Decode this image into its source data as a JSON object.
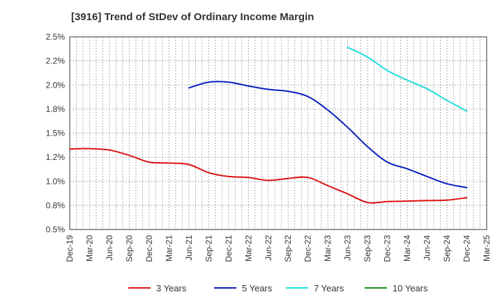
{
  "chart_data": {
    "type": "line",
    "title": "[3916]  Trend of StDev of Ordinary Income Margin",
    "x_categories": [
      "Dec-19",
      "Mar-20",
      "Jun-20",
      "Sep-20",
      "Dec-20",
      "Mar-21",
      "Jun-21",
      "Sep-21",
      "Dec-21",
      "Mar-22",
      "Jun-22",
      "Sep-22",
      "Dec-22",
      "Mar-23",
      "Jun-23",
      "Sep-23",
      "Dec-23",
      "Mar-24",
      "Jun-24",
      "Sep-24",
      "Dec-24",
      "Mar-25"
    ],
    "y_ticks": [
      "0.5%",
      "0.8%",
      "1.0%",
      "1.2%",
      "1.5%",
      "1.8%",
      "2.0%",
      "2.2%",
      "2.5%"
    ],
    "ylim": [
      0.5,
      2.5
    ],
    "grid": true,
    "legend_position": "bottom",
    "series": [
      {
        "name": "3 Years",
        "color": "#dd1111",
        "points": [
          {
            "x": "Dec-19",
            "y": 1.335
          },
          {
            "x": "Mar-20",
            "y": 1.34
          },
          {
            "x": "Jun-20",
            "y": 1.325
          },
          {
            "x": "Sep-20",
            "y": 1.27
          },
          {
            "x": "Dec-20",
            "y": 1.2
          },
          {
            "x": "Mar-21",
            "y": 1.19
          },
          {
            "x": "Jun-21",
            "y": 1.175
          },
          {
            "x": "Sep-21",
            "y": 1.09
          },
          {
            "x": "Dec-21",
            "y": 1.05
          },
          {
            "x": "Mar-22",
            "y": 1.04
          },
          {
            "x": "Jun-22",
            "y": 1.01
          },
          {
            "x": "Sep-22",
            "y": 1.03
          },
          {
            "x": "Dec-22",
            "y": 1.04
          },
          {
            "x": "Mar-23",
            "y": 0.955
          },
          {
            "x": "Jun-23",
            "y": 0.87
          },
          {
            "x": "Sep-23",
            "y": 0.78
          },
          {
            "x": "Dec-23",
            "y": 0.79
          },
          {
            "x": "Mar-24",
            "y": 0.795
          },
          {
            "x": "Jun-24",
            "y": 0.8
          },
          {
            "x": "Sep-24",
            "y": 0.805
          },
          {
            "x": "Dec-24",
            "y": 0.83
          }
        ]
      },
      {
        "name": "5 Years",
        "color": "#0a1ebe",
        "points": [
          {
            "x": "Jun-21",
            "y": 1.97
          },
          {
            "x": "Sep-21",
            "y": 2.03
          },
          {
            "x": "Dec-21",
            "y": 2.03
          },
          {
            "x": "Mar-22",
            "y": 1.99
          },
          {
            "x": "Jun-22",
            "y": 1.955
          },
          {
            "x": "Sep-22",
            "y": 1.935
          },
          {
            "x": "Dec-22",
            "y": 1.88
          },
          {
            "x": "Mar-23",
            "y": 1.74
          },
          {
            "x": "Jun-23",
            "y": 1.56
          },
          {
            "x": "Sep-23",
            "y": 1.36
          },
          {
            "x": "Dec-23",
            "y": 1.2
          },
          {
            "x": "Mar-24",
            "y": 1.13
          },
          {
            "x": "Jun-24",
            "y": 1.05
          },
          {
            "x": "Sep-24",
            "y": 0.975
          },
          {
            "x": "Dec-24",
            "y": 0.935
          }
        ]
      },
      {
        "name": "7 Years",
        "color": "#22dddd",
        "points": [
          {
            "x": "Jun-23",
            "y": 2.39
          },
          {
            "x": "Sep-23",
            "y": 2.29
          },
          {
            "x": "Dec-23",
            "y": 2.15
          },
          {
            "x": "Mar-24",
            "y": 2.05
          },
          {
            "x": "Jun-24",
            "y": 1.96
          },
          {
            "x": "Sep-24",
            "y": 1.84
          },
          {
            "x": "Dec-24",
            "y": 1.73
          }
        ]
      },
      {
        "name": "10 Years",
        "color": "#1a8a1a",
        "points": []
      }
    ]
  }
}
